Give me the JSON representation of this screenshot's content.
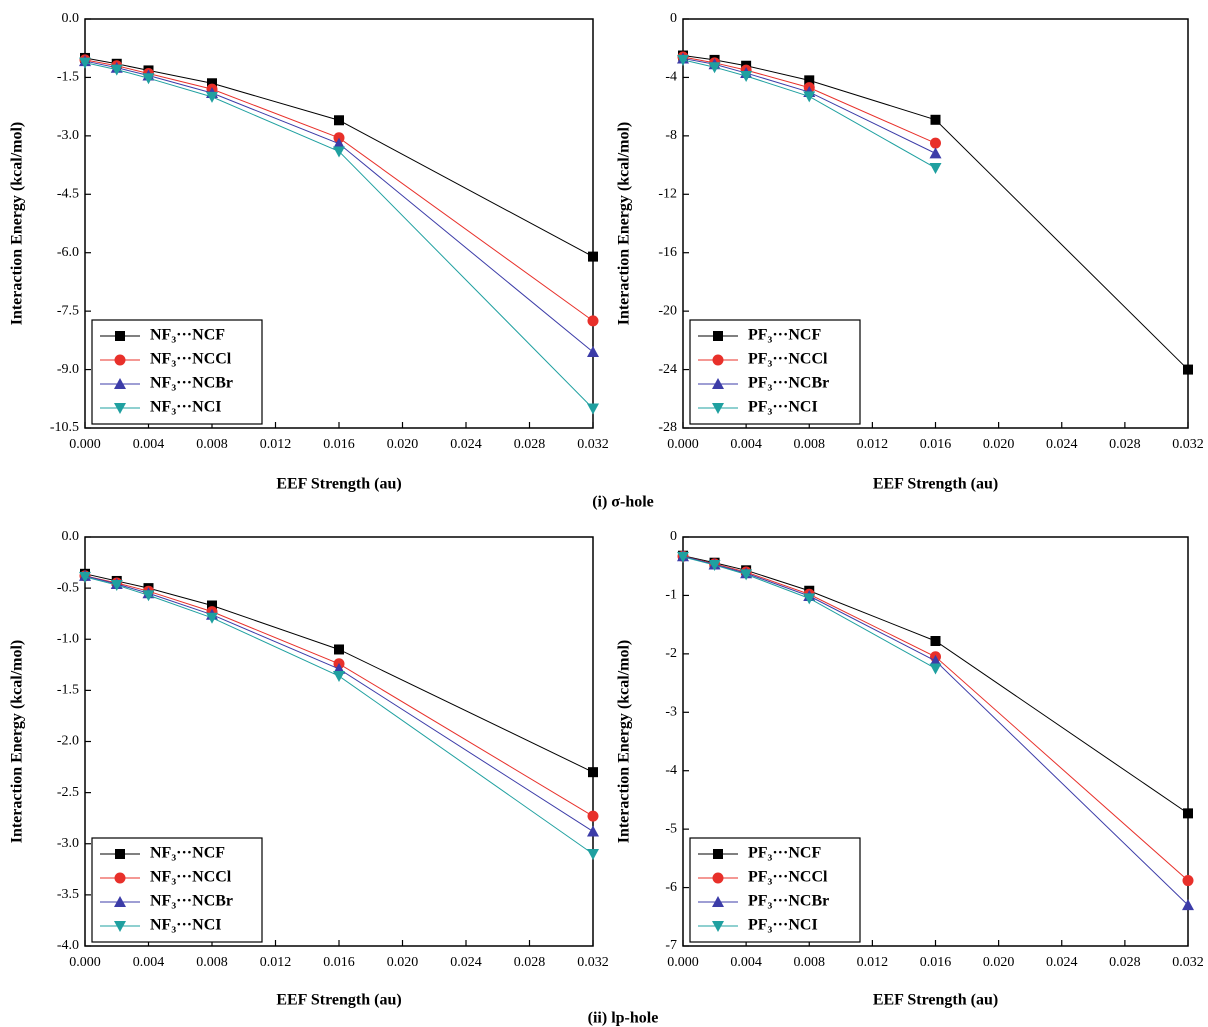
{
  "chart_data": [
    {
      "type": "line",
      "x_label": "EEF Strength (au)",
      "y_label": "Interaction  Energy (kcal/mol)",
      "x": [
        0,
        0.002,
        0.004,
        0.008,
        0.016,
        0.032
      ],
      "xlim": [
        0,
        0.032
      ],
      "xticks": [
        {
          "value": 0,
          "label": "0.000"
        },
        0.004,
        0.008,
        0.012,
        0.016,
        {
          "value": 0.02,
          "label": "0.020"
        },
        0.024,
        0.028,
        0.032
      ],
      "ylim": [
        -10.5,
        0
      ],
      "yticks": [
        {
          "value": 0,
          "label": "0.0"
        },
        -1.5,
        {
          "value": -3,
          "label": "-3.0"
        },
        -4.5,
        {
          "value": -6,
          "label": "-6.0"
        },
        -7.5,
        {
          "value": -9,
          "label": "-9.0"
        },
        -10.5
      ],
      "legend": "lower left",
      "series": [
        {
          "name": "NF₃···NCF",
          "color": "#000000",
          "marker": "square",
          "values": [
            -1.0,
            -1.15,
            -1.32,
            -1.65,
            -2.6,
            -6.1
          ]
        },
        {
          "name": "NF₃···NCCl",
          "color": "#e8302a",
          "marker": "circle",
          "values": [
            -1.05,
            -1.2,
            -1.4,
            -1.8,
            -3.05,
            -7.75
          ]
        },
        {
          "name": "NF₃···NCBr",
          "color": "#3c3ca8",
          "marker": "triangle-up",
          "values": [
            -1.08,
            -1.25,
            -1.45,
            -1.9,
            -3.2,
            -8.55
          ]
        },
        {
          "name": "NF₃···NCI",
          "color": "#1fa0a0",
          "marker": "triangle-down",
          "values": [
            -1.12,
            -1.3,
            -1.52,
            -2.0,
            -3.4,
            -10.0
          ]
        }
      ]
    },
    {
      "type": "line",
      "x_label": "EEF Strength (au)",
      "y_label": "Interaction  Energy (kcal/mol)",
      "x": [
        0,
        0.002,
        0.004,
        0.008,
        0.016,
        0.032
      ],
      "xlim": [
        0,
        0.032
      ],
      "xticks": [
        {
          "value": 0,
          "label": "0.000"
        },
        0.004,
        0.008,
        0.012,
        0.016,
        {
          "value": 0.02,
          "label": "0.020"
        },
        0.024,
        0.028,
        0.032
      ],
      "ylim": [
        -28,
        0
      ],
      "yticks": [
        0,
        -4,
        -8,
        -12,
        -16,
        -20,
        -24,
        -28
      ],
      "legend": "lower left",
      "series": [
        {
          "name": "PF₃···NCF",
          "color": "#000000",
          "marker": "square",
          "values": [
            -2.5,
            -2.8,
            -3.2,
            -4.2,
            -6.9,
            -24.0
          ]
        },
        {
          "name": "PF₃···NCCl",
          "color": "#e8302a",
          "marker": "circle",
          "values": [
            -2.6,
            -3.0,
            -3.5,
            -4.7,
            -8.5,
            null
          ]
        },
        {
          "name": "PF₃···NCBr",
          "color": "#3c3ca8",
          "marker": "triangle-up",
          "values": [
            -2.7,
            -3.1,
            -3.7,
            -5.0,
            -9.2,
            null
          ]
        },
        {
          "name": "PF₃···NCI",
          "color": "#1fa0a0",
          "marker": "triangle-down",
          "values": [
            -2.8,
            -3.3,
            -3.9,
            -5.3,
            -10.2,
            null
          ]
        }
      ]
    },
    {
      "type": "line",
      "x_label": "EEF Strength (au)",
      "y_label": "Interaction  Energy (kcal/mol)",
      "x": [
        0,
        0.002,
        0.004,
        0.008,
        0.016,
        0.032
      ],
      "xlim": [
        0,
        0.032
      ],
      "xticks": [
        {
          "value": 0,
          "label": "0.000"
        },
        0.004,
        0.008,
        0.012,
        0.016,
        {
          "value": 0.02,
          "label": "0.020"
        },
        0.024,
        0.028,
        0.032
      ],
      "ylim": [
        -4,
        0
      ],
      "yticks": [
        {
          "value": 0,
          "label": "0.0"
        },
        -0.5,
        {
          "value": -1,
          "label": "-1.0"
        },
        -1.5,
        {
          "value": -2,
          "label": "-2.0"
        },
        -2.5,
        {
          "value": -3,
          "label": "-3.0"
        },
        -3.5,
        {
          "value": -4,
          "label": "-4.0"
        }
      ],
      "legend": "lower left",
      "series": [
        {
          "name": "NF₃···NCF",
          "color": "#000000",
          "marker": "square",
          "values": [
            -0.36,
            -0.43,
            -0.5,
            -0.67,
            -1.1,
            -2.3
          ]
        },
        {
          "name": "NF₃···NCCl",
          "color": "#e8302a",
          "marker": "circle",
          "values": [
            -0.38,
            -0.45,
            -0.53,
            -0.73,
            -1.24,
            -2.73
          ]
        },
        {
          "name": "NF₃···NCBr",
          "color": "#3c3ca8",
          "marker": "triangle-up",
          "values": [
            -0.38,
            -0.46,
            -0.55,
            -0.76,
            -1.29,
            -2.88
          ]
        },
        {
          "name": "NF₃···NCI",
          "color": "#1fa0a0",
          "marker": "triangle-down",
          "values": [
            -0.39,
            -0.47,
            -0.57,
            -0.79,
            -1.36,
            -3.1
          ]
        }
      ]
    },
    {
      "type": "line",
      "x_label": "EEF Strength (au)",
      "y_label": "Interaction  Energy (kcal/mol)",
      "x": [
        0,
        0.002,
        0.004,
        0.008,
        0.016,
        0.032
      ],
      "xlim": [
        0,
        0.032
      ],
      "xticks": [
        {
          "value": 0,
          "label": "0.000"
        },
        0.004,
        0.008,
        0.012,
        0.016,
        {
          "value": 0.02,
          "label": "0.020"
        },
        0.024,
        0.028,
        0.032
      ],
      "ylim": [
        -7,
        0
      ],
      "yticks": [
        0,
        -1,
        -2,
        -3,
        -4,
        -5,
        -6,
        -7
      ],
      "legend": "lower left",
      "series": [
        {
          "name": "PF₃···NCF",
          "color": "#000000",
          "marker": "square",
          "values": [
            -0.32,
            -0.44,
            -0.57,
            -0.92,
            -1.78,
            -4.73
          ]
        },
        {
          "name": "PF₃···NCCl",
          "color": "#e8302a",
          "marker": "circle",
          "values": [
            -0.33,
            -0.46,
            -0.6,
            -0.98,
            -2.05,
            -5.88
          ]
        },
        {
          "name": "PF₃···NCBr",
          "color": "#3c3ca8",
          "marker": "triangle-up",
          "values": [
            -0.33,
            -0.47,
            -0.62,
            -1.01,
            -2.12,
            -6.3
          ]
        },
        {
          "name": "PF₃···NCI",
          "color": "#1fa0a0",
          "marker": "triangle-down",
          "values": [
            -0.34,
            -0.48,
            -0.64,
            -1.05,
            -2.25,
            null
          ]
        }
      ]
    }
  ],
  "captions": [
    "(i) σ-hole",
    "(ii) lp-hole"
  ]
}
